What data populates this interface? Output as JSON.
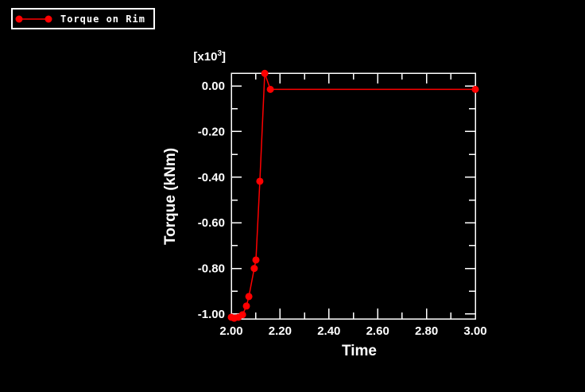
{
  "window": {
    "background": "#000000"
  },
  "legend": {
    "items": [
      {
        "label": "Torque on Rim",
        "color": "#ff0000",
        "marker": "circle-line"
      }
    ]
  },
  "chart_data": {
    "type": "line",
    "title": "",
    "xlabel": "Time",
    "ylabel": "Torque (kNm)",
    "y_unit_multiplier": {
      "prefix": "[x10",
      "exponent": "3",
      "suffix": "]"
    },
    "xlim": [
      2.0,
      3.0
    ],
    "ylim": [
      -1021,
      56
    ],
    "grid": false,
    "legend_position": "top-left",
    "x_major_ticks": [
      {
        "v": 2.0,
        "label": "2.00"
      },
      {
        "v": 2.2,
        "label": "2.20"
      },
      {
        "v": 2.4,
        "label": "2.40"
      },
      {
        "v": 2.6,
        "label": "2.60"
      },
      {
        "v": 2.8,
        "label": "2.80"
      },
      {
        "v": 3.0,
        "label": "3.00"
      }
    ],
    "x_minor_ticks": [
      2.1,
      2.3,
      2.5,
      2.7,
      2.9
    ],
    "y_major_ticks": [
      {
        "v": 0,
        "label": "0.00"
      },
      {
        "v": -200,
        "label": "-0.20"
      },
      {
        "v": -400,
        "label": "-0.40"
      },
      {
        "v": -600,
        "label": "-0.60"
      },
      {
        "v": -800,
        "label": "-0.80"
      },
      {
        "v": -1000,
        "label": "-1.00"
      }
    ],
    "y_minor_ticks": [
      -100,
      -300,
      -500,
      -700,
      -900
    ],
    "series": [
      {
        "name": "Torque on Rim",
        "color": "#ff0000",
        "marker": "circle",
        "marker_radius": 4.5,
        "points": [
          [
            2.0,
            -1014
          ],
          [
            2.012,
            -1018
          ],
          [
            2.029,
            -1014
          ],
          [
            2.046,
            -1003
          ],
          [
            2.062,
            -965
          ],
          [
            2.072,
            -923
          ],
          [
            2.094,
            -800
          ],
          [
            2.101,
            -763
          ],
          [
            2.117,
            -418
          ],
          [
            2.137,
            55
          ],
          [
            2.16,
            -15
          ],
          [
            3.0,
            -15
          ]
        ]
      }
    ],
    "colors": {
      "axis": "#ffffff",
      "text": "#ffffff",
      "background": "#000000"
    }
  }
}
